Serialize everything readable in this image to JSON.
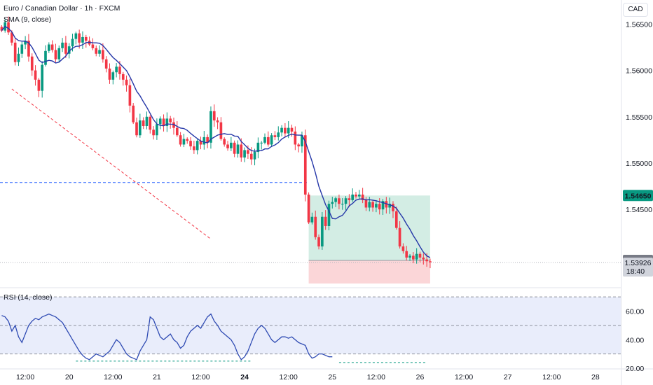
{
  "legend": {
    "title": "Euro / Canadian Dollar · 1h · FXCM",
    "sma": "SMA (9, close)",
    "rsi": "RSI (14, close)"
  },
  "unit_button": "CAD",
  "colors": {
    "up": "#089981",
    "down": "#f23645",
    "sma": "#2537a8",
    "rsi": "#2f4bb3",
    "target_fill": "#d3ede4",
    "stop_fill": "#fbd6d8",
    "target_tag": "#089981",
    "last_tag": "#b2b5be",
    "rsi_band": "#e9edfb"
  },
  "chart_data": [
    {
      "type": "candlestick",
      "price_axis": {
        "ylim": [
          1.5367,
          1.5676
        ],
        "ticks": [
          "1.56500",
          "1.56000",
          "1.55500",
          "1.55000",
          "1.54500"
        ]
      },
      "time_axis": {
        "ticks": [
          "12:00",
          "20",
          "12:00",
          "21",
          "12:00",
          "24",
          "12:00",
          "25",
          "12:00",
          "26",
          "12:00",
          "27",
          "12:00",
          "28"
        ],
        "tick_bars": [
          7,
          20,
          33,
          46,
          59,
          72,
          85,
          98,
          111,
          124,
          137,
          150,
          163,
          176
        ],
        "total_bars": 184
      },
      "sma_period": 9,
      "series_close": [
        1.5643,
        1.5652,
        1.5641,
        1.563,
        1.5609,
        1.5618,
        1.5628,
        1.5632,
        1.5615,
        1.56,
        1.559,
        1.5578,
        1.5606,
        1.5621,
        1.5628,
        1.5622,
        1.5612,
        1.5624,
        1.563,
        1.5618,
        1.5626,
        1.5634,
        1.564,
        1.563,
        1.5636,
        1.5632,
        1.5628,
        1.5624,
        1.5618,
        1.5622,
        1.5612,
        1.5602,
        1.559,
        1.5598,
        1.5604,
        1.5596,
        1.559,
        1.5584,
        1.5562,
        1.5544,
        1.553,
        1.5546,
        1.554,
        1.555,
        1.5536,
        1.553,
        1.5542,
        1.5548,
        1.554,
        1.5548,
        1.5544,
        1.5538,
        1.553,
        1.552,
        1.5526,
        1.5524,
        1.5518,
        1.5514,
        1.5524,
        1.552,
        1.5528,
        1.5522,
        1.5556,
        1.5546,
        1.5544,
        1.5526,
        1.552,
        1.5516,
        1.5522,
        1.551,
        1.552,
        1.5506,
        1.5514,
        1.551,
        1.5504,
        1.5512,
        1.5522,
        1.5522,
        1.5528,
        1.552,
        1.553,
        1.5528,
        1.5533,
        1.5538,
        1.5532,
        1.5538,
        1.5534,
        1.552,
        1.5518,
        1.553,
        1.5466,
        1.5436,
        1.5442,
        1.542,
        1.541,
        1.5442,
        1.5432,
        1.5456,
        1.5458,
        1.5462,
        1.5456,
        1.5456,
        1.5462,
        1.546,
        1.5466,
        1.5464,
        1.5466,
        1.546,
        1.5452,
        1.5458,
        1.5452,
        1.5456,
        1.545,
        1.5459,
        1.5452,
        1.5456,
        1.5448,
        1.543,
        1.541,
        1.5405,
        1.5398,
        1.54,
        1.5396,
        1.5402,
        1.5398,
        1.5396,
        1.5394,
        1.5393
      ],
      "last_price": "1.53926",
      "last_price_value": 1.53926,
      "countdown": "18:40",
      "trendline": {
        "from": {
          "bar": 3,
          "price": 1.558
        },
        "to": {
          "bar": 62,
          "price": 1.5418
        }
      },
      "resistance": {
        "price": 1.5479
      },
      "position": {
        "entry": 1.5395,
        "entry_label": "1.53950",
        "target": 1.5465,
        "target_label": "1.54650",
        "stop": 1.537,
        "start_bar": 91,
        "end_bar": 127
      }
    },
    {
      "type": "line",
      "name": "RSI (14, close)",
      "ylim": [
        20,
        75
      ],
      "ticks": [
        "60.00",
        "40.00",
        "20.00"
      ],
      "bands": {
        "upper": 70,
        "middle": 50,
        "lower": 30
      },
      "values": [
        57,
        56,
        53,
        46,
        50,
        42,
        38,
        44,
        50,
        53,
        55,
        54,
        56,
        57,
        58,
        57,
        56,
        54,
        52,
        48,
        44,
        40,
        36,
        32,
        29,
        27,
        26,
        28,
        30,
        29,
        28,
        30,
        32,
        36,
        40,
        38,
        34,
        30,
        28,
        27,
        26,
        32,
        36,
        40,
        56,
        54,
        48,
        42,
        40,
        42,
        44,
        40,
        38,
        34,
        36,
        42,
        46,
        48,
        50,
        48,
        52,
        56,
        58,
        53,
        50,
        46,
        44,
        42,
        40,
        36,
        30,
        26,
        28,
        32,
        38,
        44,
        48,
        50,
        48,
        44,
        40,
        38,
        40,
        42,
        42,
        41,
        42,
        40,
        38,
        37,
        36,
        30,
        27,
        28,
        30,
        30,
        29,
        28,
        28
      ]
    }
  ]
}
